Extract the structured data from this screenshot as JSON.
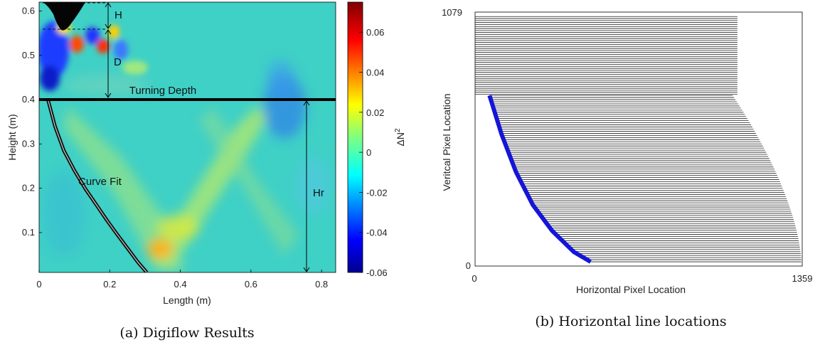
{
  "chart_data": [
    {
      "type": "heatmap",
      "xlabel": "Length (m)",
      "ylabel": "Height (m)",
      "xlim": [
        0,
        0.84
      ],
      "ylim": [
        0.01,
        0.62
      ],
      "xticks": [
        "0",
        "0.2",
        "0.4",
        "0.6",
        "0.8"
      ],
      "yticks": [
        "0.1",
        "0.2",
        "0.3",
        "0.4",
        "0.5",
        "0.6"
      ],
      "colorbar": {
        "label": "ΔN",
        "label_superscript": "2",
        "clim": [
          -0.06,
          0.075
        ],
        "ticks": [
          "0.06",
          "0.04",
          "0.02",
          "0",
          "-0.02",
          "-0.04",
          "-0.06"
        ],
        "colormap": "jet"
      },
      "turning_depth": {
        "label": "Turning Depth",
        "y": 0.4
      },
      "curve_fit": {
        "label": "Curve Fit",
        "x": [
          0.025,
          0.045,
          0.07,
          0.1,
          0.13,
          0.16,
          0.19,
          0.22,
          0.25,
          0.28,
          0.305
        ],
        "y": [
          0.4,
          0.34,
          0.285,
          0.24,
          0.2,
          0.165,
          0.13,
          0.097,
          0.065,
          0.033,
          0.01
        ]
      },
      "annotations": [
        "H",
        "D",
        "Hr"
      ],
      "caption": "(a) Digiflow Results"
    },
    {
      "type": "line",
      "xlabel": "Horizontal Pixel Location",
      "ylabel": "Veritcal Pixel Location",
      "xlim": [
        0,
        1359
      ],
      "ylim": [
        0,
        1079
      ],
      "xticks": [
        "0",
        "1359"
      ],
      "yticks": [
        "0",
        "1079"
      ],
      "upper_lines": {
        "x_start": 0,
        "x_end": 1090,
        "y_from": 730,
        "y_to": 1060,
        "count": 40
      },
      "lower_lines": {
        "count": 80,
        "y_from": 18,
        "y_to": 725,
        "x_end_at_bottom": 1355,
        "x_end_at_top": 1070
      },
      "blue_curve": {
        "color": "#1515d8",
        "x": [
          60,
          110,
          170,
          240,
          320,
          410,
          480
        ],
        "y": [
          725,
          560,
          400,
          260,
          150,
          60,
          18
        ]
      },
      "caption": "(b) Horizontal line locations"
    }
  ]
}
